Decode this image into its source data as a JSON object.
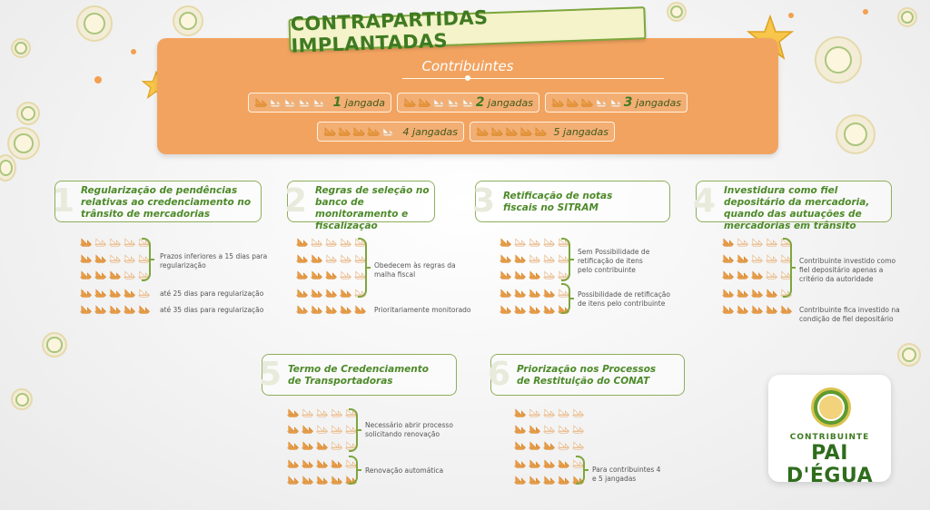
{
  "title": "CONTRAPARTIDAS IMPLANTADAS",
  "panel": {
    "heading": "Contribuintes",
    "levels": [
      {
        "count": 1,
        "number": "1",
        "word": "jangada"
      },
      {
        "count": 2,
        "number": "2",
        "word": "jangadas"
      },
      {
        "count": 3,
        "number": "3",
        "word": "jangadas"
      },
      {
        "count": 4,
        "number": "",
        "word": "4 jangadas"
      },
      {
        "count": 5,
        "number": "",
        "word": "5 jangadas"
      }
    ]
  },
  "topics": [
    {
      "number": "1",
      "title": "Regularização de pendências relativas ao credenciamento no trânsito de mercadorias",
      "notes": [
        "Prazos inferiores a 15 dias para regularização",
        "até 25 dias para regularização",
        "até 35 dias para regularização"
      ]
    },
    {
      "number": "2",
      "title": "Regras de seleção no banco de monitoramento e fiscalização",
      "notes": [
        "Obedecem às regras da malha fiscal",
        "Prioritariamente monitorado"
      ]
    },
    {
      "number": "3",
      "title": "Retificação de notas fiscais no SITRAM",
      "notes": [
        "Sem Possibilidade de retificação de itens pelo contribuinte",
        "Possibilidade de retificação de itens pelo contribuinte"
      ]
    },
    {
      "number": "4",
      "title": "Investidura como fiel depositário da mercadoria, quando das autuações de mercadorias em trânsito",
      "notes": [
        "Contribuinte  investido como fiel depositário apenas a critério da autoridade",
        "Contribuinte fica investido na condição de fiel depositário"
      ]
    },
    {
      "number": "5",
      "title": "Termo de Credenciamento de Transportadoras",
      "notes": [
        "Necessário abrir processo solicitando renovação",
        "Renovação automática"
      ]
    },
    {
      "number": "6",
      "title": "Priorização nos Processos de Restituição do CONAT",
      "notes": [
        "Para contribuintes 4 e 5 jangadas"
      ]
    }
  ],
  "logo": {
    "small": "CONTRIBUINTE",
    "big": "PAI D'ÉGUA"
  },
  "colors": {
    "green": "#3f7a22",
    "orange_panel": "#f2a360",
    "boat_filled": "#f0a24a",
    "boat_empty": "#ffffff"
  }
}
